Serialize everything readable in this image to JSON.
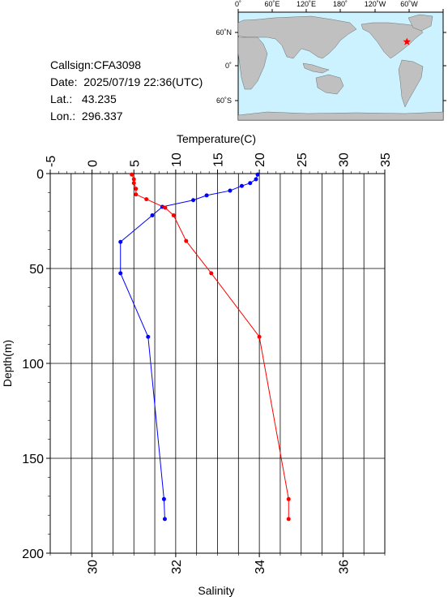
{
  "station": {
    "callsign_label": "Callsign:",
    "callsign": "CFA3098",
    "date_label": "Date:",
    "date": "2025/07/19 22:36(UTC)",
    "lat_label": "Lat.:",
    "lat": "43.235",
    "lon_label": "Lon.:",
    "lon": "296.337"
  },
  "map": {
    "lon_labels": [
      "0˚",
      "60˚E",
      "120˚E",
      "180˚",
      "120˚W",
      "60˚W"
    ],
    "lat_labels": [
      "60˚N",
      "0˚",
      "60˚S"
    ],
    "ocean_color": "#ccf2ff",
    "land_color": "#c0c0c0",
    "marker_color": "#ff0000",
    "marker": {
      "lat": 43.235,
      "lon": 296.337
    }
  },
  "chart_data": {
    "type": "line",
    "ylabel": "Depth(m)",
    "ylim": [
      200,
      0
    ],
    "yticks": [
      0,
      50,
      100,
      150,
      200
    ],
    "grid": true,
    "temperature_axis": {
      "label": "Temperature(C)",
      "range": [
        -5,
        35
      ],
      "ticks": [
        -5,
        0,
        5,
        10,
        15,
        20,
        25,
        30,
        35
      ],
      "position": "top"
    },
    "salinity_axis": {
      "label": "Salinity",
      "range": [
        29,
        37
      ],
      "ticks": [
        30,
        32,
        34,
        36
      ],
      "position": "bottom"
    },
    "series": [
      {
        "axis": "temperature",
        "color": "#0000ff",
        "points": [
          [
            19.8,
            0.5
          ],
          [
            19.6,
            3
          ],
          [
            18.9,
            5
          ],
          [
            17.9,
            6.5
          ],
          [
            16.5,
            9
          ],
          [
            13.7,
            11.5
          ],
          [
            12.1,
            14
          ],
          [
            8.4,
            17.5
          ],
          [
            7.2,
            22
          ],
          [
            3.4,
            36
          ],
          [
            3.4,
            52.5
          ],
          [
            6.7,
            86
          ],
          [
            8.6,
            171.5
          ],
          [
            8.7,
            182
          ]
        ]
      },
      {
        "axis": "salinity",
        "color": "#ff0000",
        "points": [
          [
            30.95,
            0.5
          ],
          [
            31.0,
            3
          ],
          [
            31.0,
            5
          ],
          [
            31.05,
            8
          ],
          [
            31.05,
            11
          ],
          [
            31.3,
            13.5
          ],
          [
            31.75,
            18
          ],
          [
            31.95,
            22
          ],
          [
            32.25,
            35.5
          ],
          [
            32.85,
            52.5
          ],
          [
            34.0,
            86
          ],
          [
            34.7,
            171.5
          ],
          [
            34.7,
            182
          ]
        ]
      }
    ]
  }
}
